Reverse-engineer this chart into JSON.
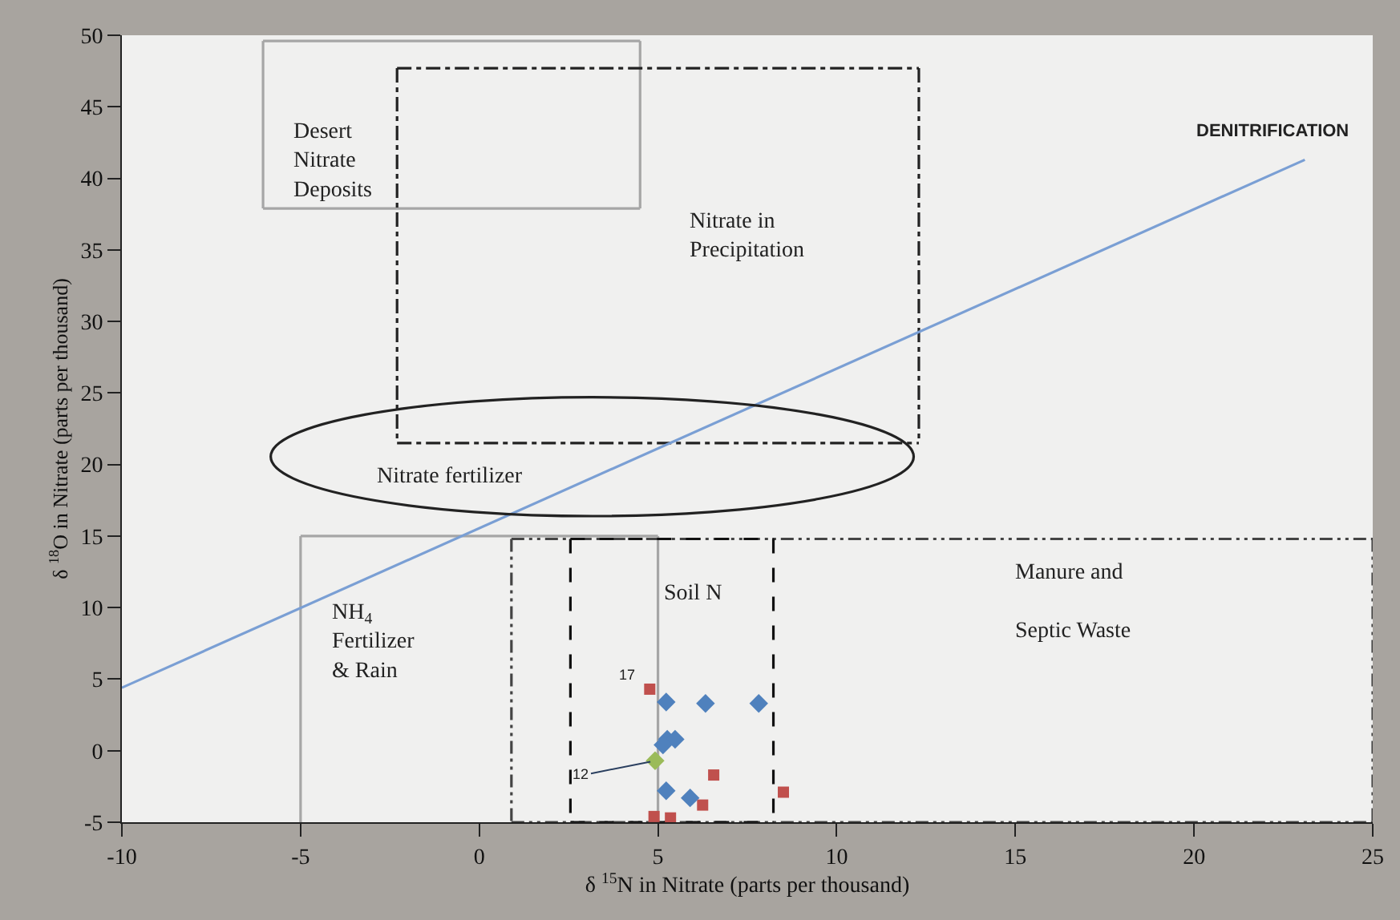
{
  "chart_data": {
    "type": "scatter",
    "xlabel": "δ $^{15}$N in Nitrate (parts per thousand)",
    "ylabel": "δ $^{18}$O in Nitrate (parts per thousand)",
    "xlim": [
      -10,
      25
    ],
    "xticks": [
      -10,
      -5,
      0,
      5,
      10,
      15,
      20,
      25
    ],
    "ylim": [
      -5,
      50
    ],
    "yticks": [
      -5,
      0,
      5,
      10,
      15,
      20,
      25,
      30,
      35,
      40,
      45,
      50
    ],
    "grid": false,
    "series": [
      {
        "type": "line",
        "color": "#a6a6a6",
        "line_style": "solid",
        "marker": "none",
        "x": [
          -6.05,
          4.5
        ],
        "values": [
          49.6,
          49.6
        ]
      },
      {
        "type": "line",
        "color": "#a6a6a6",
        "line_style": "solid",
        "marker": "none",
        "x": [
          -6.05,
          4.5
        ],
        "values": [
          37.9,
          37.9
        ]
      },
      {
        "type": "line",
        "color": "#a6a6a6",
        "line_style": "solid",
        "marker": "none",
        "x": [
          -6.05,
          -6.05
        ],
        "values": [
          49.6,
          37.9
        ]
      },
      {
        "type": "line",
        "color": "#a6a6a6",
        "line_style": "solid",
        "marker": "none",
        "x": [
          4.5,
          4.5
        ],
        "values": [
          49.6,
          37.9
        ]
      },
      {
        "type": "line",
        "color": "#222222",
        "line_style": "dashdot",
        "marker": "none",
        "x": [
          -2.3,
          12.3
        ],
        "values": [
          47.7,
          47.7
        ]
      },
      {
        "type": "line",
        "color": "#222222",
        "line_style": "dashdot",
        "marker": "none",
        "x": [
          -2.3,
          12.3
        ],
        "values": [
          21.5,
          21.5
        ]
      },
      {
        "type": "line",
        "color": "#222222",
        "line_style": "dashdot",
        "marker": "none",
        "x": [
          -2.3,
          -2.3
        ],
        "values": [
          47.7,
          21.5
        ]
      },
      {
        "type": "line",
        "color": "#222222",
        "line_style": "dashdot",
        "marker": "none",
        "x": [
          12.3,
          12.3
        ],
        "values": [
          47.7,
          21.5
        ]
      },
      {
        "type": "line",
        "color": "#a6a6a6",
        "line_style": "solid",
        "marker": "none",
        "x": [
          -5,
          5
        ],
        "values": [
          15,
          15
        ]
      },
      {
        "type": "line",
        "color": "#a6a6a6",
        "line_style": "solid",
        "marker": "none",
        "x": [
          -5,
          -5
        ],
        "values": [
          15,
          -5
        ]
      },
      {
        "type": "line",
        "color": "#a6a6a6",
        "line_style": "solid",
        "marker": "none",
        "x": [
          5,
          5
        ],
        "values": [
          15,
          -5
        ]
      },
      {
        "type": "line",
        "color": "#444444",
        "line_style": "dashdotdot",
        "marker": "none",
        "x": [
          0.9,
          25
        ],
        "values": [
          14.8,
          14.8
        ]
      },
      {
        "type": "line",
        "color": "#444444",
        "line_style": "dashdotdot",
        "marker": "none",
        "x": [
          0.9,
          25
        ],
        "values": [
          -5,
          -5
        ]
      },
      {
        "type": "line",
        "color": "#444444",
        "line_style": "dashdotdot",
        "marker": "none",
        "x": [
          0.9,
          0.9
        ],
        "values": [
          14.8,
          -5
        ]
      },
      {
        "type": "line",
        "color": "#444444",
        "line_style": "dashdotdot",
        "marker": "none",
        "x": [
          25,
          25
        ],
        "values": [
          14.8,
          -5
        ]
      },
      {
        "type": "line",
        "color": "#111111",
        "line_style": "dashed",
        "marker": "none",
        "x": [
          2.55,
          8.23
        ],
        "values": [
          14.8,
          14.8
        ]
      },
      {
        "type": "line",
        "color": "#111111",
        "line_style": "dashed",
        "marker": "none",
        "x": [
          2.55,
          8.23
        ],
        "values": [
          -5,
          -5
        ]
      },
      {
        "type": "line",
        "color": "#111111",
        "line_style": "dashed",
        "marker": "none",
        "x": [
          2.55,
          2.55
        ],
        "values": [
          14.8,
          -5
        ]
      },
      {
        "type": "line",
        "color": "#111111",
        "line_style": "dashed",
        "marker": "none",
        "x": [
          8.23,
          8.23
        ],
        "values": [
          14.8,
          -5
        ]
      },
      {
        "type": "line",
        "color": "#7a9fd4",
        "line_style": "solid",
        "marker": "none",
        "x": [
          -10,
          23.1
        ],
        "values": [
          4.4,
          41.3
        ]
      },
      {
        "color": "#c0504d",
        "marker": "square",
        "x": [
          4.77,
          6.56,
          6.25,
          8.51,
          4.89,
          5.35
        ],
        "values": [
          4.3,
          -1.7,
          -3.8,
          -2.9,
          -4.6,
          -4.7
        ]
      },
      {
        "color": "#4f81bd",
        "marker": "diamond",
        "x": [
          5.23,
          6.33,
          7.82,
          5.26,
          5.48,
          5.14,
          5.23,
          5.9
        ],
        "values": [
          3.4,
          3.3,
          3.3,
          0.8,
          0.8,
          0.4,
          -2.8,
          -3.3
        ]
      },
      {
        "color": "#9bbb59",
        "marker": "diamond",
        "x": [
          4.92
        ],
        "values": [
          -0.7
        ]
      }
    ],
    "annotations": [
      "Desert\nNitrate\nDeposits",
      "Nitrate in\nPrecipitation",
      "Nitrate fertilizer",
      "NH$_{4}$\nFertilizer\n& Rain",
      "Soil N",
      "Manure and\nSeptic Waste",
      {
        "text": "DENITRIFICATION",
        "x": 23.1,
        "y": 41.3
      },
      {
        "text": "17",
        "x": 4.77,
        "y": 4.3
      },
      {
        "text": "12",
        "x": 4.92,
        "y": -0.7
      }
    ]
  }
}
